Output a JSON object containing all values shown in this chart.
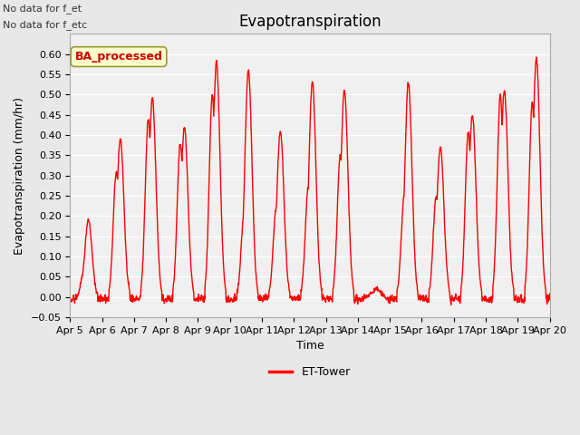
{
  "title": "Evapotranspiration",
  "ylabel": "Evapotranspiration (mm/hr)",
  "xlabel": "Time",
  "ylim": [
    -0.05,
    0.65
  ],
  "yticks": [
    -0.05,
    0.0,
    0.05,
    0.1,
    0.15,
    0.2,
    0.25,
    0.3,
    0.35,
    0.4,
    0.45,
    0.5,
    0.55,
    0.6
  ],
  "line_color": "red",
  "line_width": 1.0,
  "background_color": "#e8e8e8",
  "plot_bg_color": "#f0f0f0",
  "legend_label": "ET-Tower",
  "annotations": [
    "No data for f_et",
    "No data for f_etc"
  ],
  "annotation_color": "#333333",
  "ba_label": "BA_processed",
  "ba_label_color": "#cc0000",
  "ba_box_color": "#ffffcc",
  "ba_box_edge": "#999933",
  "x_tick_labels": [
    "Apr 5",
    "Apr 6",
    "Apr 7",
    "Apr 8",
    "Apr 9",
    "Apr 10",
    "Apr 11",
    "Apr 12",
    "Apr 13",
    "Apr 14",
    "Apr 15",
    "Apr 16",
    "Apr 17",
    "Apr 18",
    "Apr 19",
    "Apr 20"
  ],
  "n_days": 15,
  "start_day": 5,
  "day_peaks": [
    0.19,
    0.39,
    0.49,
    0.42,
    0.58,
    0.56,
    0.41,
    0.53,
    0.51,
    0.02,
    0.53,
    0.37,
    0.45,
    0.51,
    0.59
  ],
  "day_peaks2": [
    0.07,
    0.31,
    0.44,
    0.38,
    0.5,
    0.21,
    0.22,
    0.27,
    0.35,
    0.01,
    0.25,
    0.25,
    0.41,
    0.5,
    0.48
  ]
}
